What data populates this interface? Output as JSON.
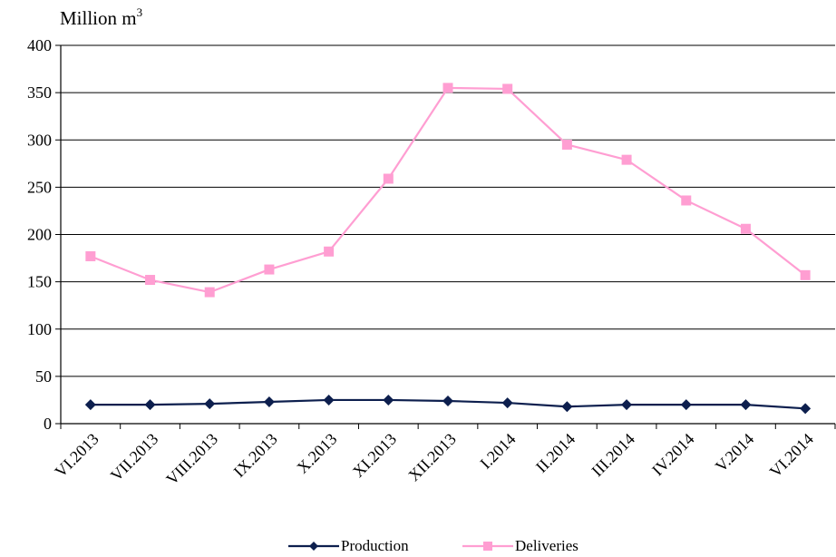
{
  "chart_data": {
    "type": "line",
    "ylabel": "Million m",
    "ylabel_superscript": "3",
    "categories": [
      "VI.2013",
      "VII.2013",
      "VIII.2013",
      "IX.2013",
      "X.2013",
      "XI.2013",
      "XII.2013",
      "I.2014",
      "II.2014",
      "III.2014",
      "IV.2014",
      "V.2014",
      "VI.2014"
    ],
    "ylim": [
      0,
      400
    ],
    "yticks": [
      "0",
      "50",
      "100",
      "150",
      "200",
      "250",
      "300",
      "350",
      "400"
    ],
    "grid": true,
    "legend_position": "bottom",
    "series": [
      {
        "name": "Production",
        "color": "#0d1f4e",
        "marker": "diamond",
        "values": [
          20,
          20,
          21,
          23,
          25,
          25,
          24,
          22,
          18,
          20,
          20,
          20,
          16
        ]
      },
      {
        "name": "Deliveries",
        "color": "#ff9ed2",
        "marker": "square",
        "values": [
          177,
          152,
          139,
          163,
          182,
          259,
          355,
          354,
          295,
          279,
          236,
          206,
          157
        ]
      }
    ]
  }
}
